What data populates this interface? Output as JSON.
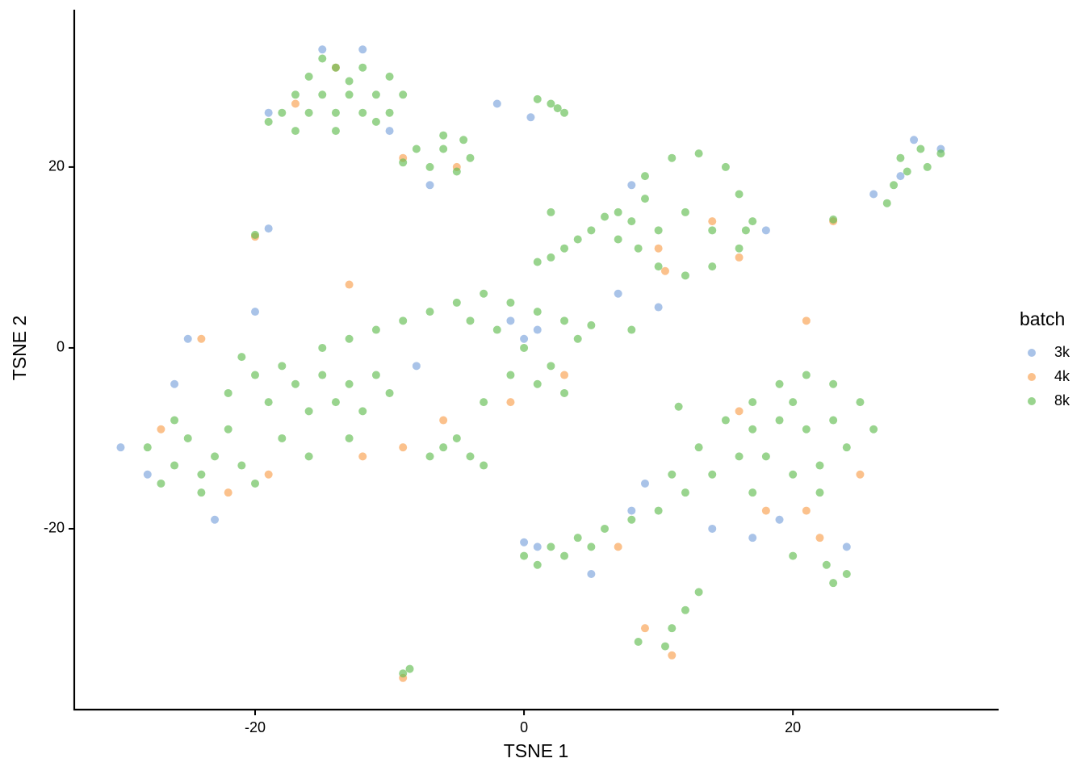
{
  "chart_data": {
    "type": "scatter",
    "x_label": "TSNE 1",
    "y_label": "TSNE 2",
    "legend_title": "batch",
    "legend": "right",
    "xlim": [
      -33.45,
      35.3
    ],
    "ylim": [
      -40.0,
      37.4
    ],
    "xticks": [
      -20,
      0,
      20
    ],
    "yticks": [
      -20,
      0,
      20
    ],
    "grid": false,
    "series": [
      {
        "name": "3k",
        "color": "#7ba3dc",
        "x": [
          -15,
          -12,
          -19,
          -10,
          -7,
          -2,
          0.5,
          29,
          31,
          26,
          8,
          18,
          10,
          7,
          -1,
          0,
          1,
          -28,
          -23,
          -30,
          -26,
          -25,
          -20,
          -8,
          9,
          8,
          1,
          0,
          14,
          17,
          19,
          5,
          24,
          -19,
          28
        ],
        "y": [
          33,
          33,
          26,
          24,
          18,
          27,
          25.5,
          23,
          22,
          17,
          18,
          13,
          4.5,
          6,
          3,
          1,
          2,
          -14,
          -19,
          -11,
          -4,
          1,
          4,
          -2,
          -15,
          -18,
          -22,
          -21.5,
          -20,
          -21,
          -19,
          -25,
          -22,
          13.2,
          19
        ]
      },
      {
        "name": "4k",
        "color": "#f9a04e",
        "x": [
          -14,
          -17,
          -9,
          -5,
          14,
          16,
          10,
          -22,
          -27,
          -24,
          -19,
          -12,
          -13,
          -6,
          -9,
          3,
          -1,
          18,
          25,
          16,
          21,
          22,
          7,
          11,
          9,
          -9,
          23,
          -20,
          21,
          10.5
        ],
        "y": [
          31,
          27,
          21,
          20,
          14,
          10,
          11,
          -16,
          -9,
          1,
          -14,
          -12,
          7,
          -8,
          -11,
          -3,
          -6,
          -18,
          -14,
          -7,
          -18,
          -21,
          -22,
          -34,
          -31,
          -36.5,
          14,
          12.3,
          3,
          8.5
        ]
      },
      {
        "name": "8k",
        "color": "#62bd52",
        "x": [
          -16,
          -14,
          -12,
          -10,
          -17,
          -15,
          -13,
          -11,
          -9,
          -18,
          -16,
          -14,
          -12,
          -10,
          -17,
          -14,
          -11,
          -19,
          -13,
          -15,
          -8,
          -6,
          -4,
          -7,
          -5,
          -9,
          -6,
          -4.5,
          1,
          2,
          3,
          2.5,
          28,
          29.5,
          30,
          28.5,
          27.5,
          31,
          27,
          9,
          11,
          13,
          15,
          16,
          17,
          16,
          14,
          12,
          10,
          8.5,
          8,
          9,
          12,
          14,
          10,
          16.5,
          3,
          4,
          5,
          6,
          7,
          2,
          1,
          7,
          -20,
          23,
          11.5,
          8,
          2,
          -28,
          -26,
          -25,
          -24,
          -23,
          -22,
          -27,
          -24,
          -21,
          -26,
          -22,
          -20,
          -19,
          -18,
          -21,
          -17,
          -16,
          -15,
          -14,
          -13,
          -12,
          -11,
          -10,
          -15,
          -13,
          -11,
          -9,
          -7,
          -5,
          -3,
          -1,
          1,
          3,
          -4,
          -2,
          0,
          -1,
          1,
          2,
          3,
          -3,
          -5,
          -4,
          -6,
          -3,
          -7,
          -18,
          -16,
          -20,
          -13,
          4,
          5,
          15,
          17,
          19,
          21,
          23,
          25,
          26,
          24,
          22,
          20,
          18,
          16,
          14,
          12,
          10,
          8,
          6,
          4,
          2,
          0,
          1,
          3,
          5,
          19,
          21,
          23,
          17,
          20,
          13,
          11,
          17,
          22,
          24,
          23,
          22.5,
          20,
          11,
          10.5,
          12,
          13,
          -9,
          -8.5,
          8.5
        ],
        "y": [
          30,
          31,
          31,
          30,
          28,
          28,
          28,
          28,
          28,
          26,
          26,
          26,
          26,
          26,
          24,
          24,
          25,
          25,
          29.5,
          32,
          22,
          22,
          21,
          20,
          19.5,
          20.5,
          23.5,
          23,
          27.5,
          27,
          26,
          26.5,
          21,
          22,
          20,
          19.5,
          18,
          21.5,
          16,
          19,
          21,
          21.5,
          20,
          17,
          14,
          11,
          9,
          8,
          9,
          11,
          14,
          16.5,
          15,
          13,
          13,
          13,
          11,
          12,
          13,
          14.5,
          15,
          10,
          9.5,
          12,
          12.5,
          14.2,
          -6.5,
          2,
          15,
          -11,
          -13,
          -10,
          -14,
          -12,
          -9,
          -15,
          -16,
          -13,
          -8,
          -5,
          -3,
          -6,
          -2,
          -1,
          -4,
          -7,
          -3,
          -6,
          -4,
          -7,
          -3,
          -5,
          0,
          1,
          2,
          3,
          4,
          5,
          6,
          5,
          4,
          3,
          3,
          2,
          0,
          -3,
          -4,
          -2,
          -5,
          -6,
          -10,
          -12,
          -11,
          -13,
          -12,
          -10,
          -12,
          -15,
          -10,
          1,
          2.5,
          -8,
          -6,
          -4,
          -3,
          -4,
          -6,
          -9,
          -11,
          -13,
          -14,
          -12,
          -12,
          -14,
          -16,
          -18,
          -19,
          -20,
          -21,
          -22,
          -23,
          -24,
          -23,
          -22,
          -8,
          -9,
          -8,
          -9,
          -6,
          -11,
          -14,
          -16,
          -16,
          -25,
          -26,
          -24,
          -23,
          -31,
          -33,
          -29,
          -27,
          -36,
          -35.5,
          -32.5
        ]
      }
    ]
  }
}
